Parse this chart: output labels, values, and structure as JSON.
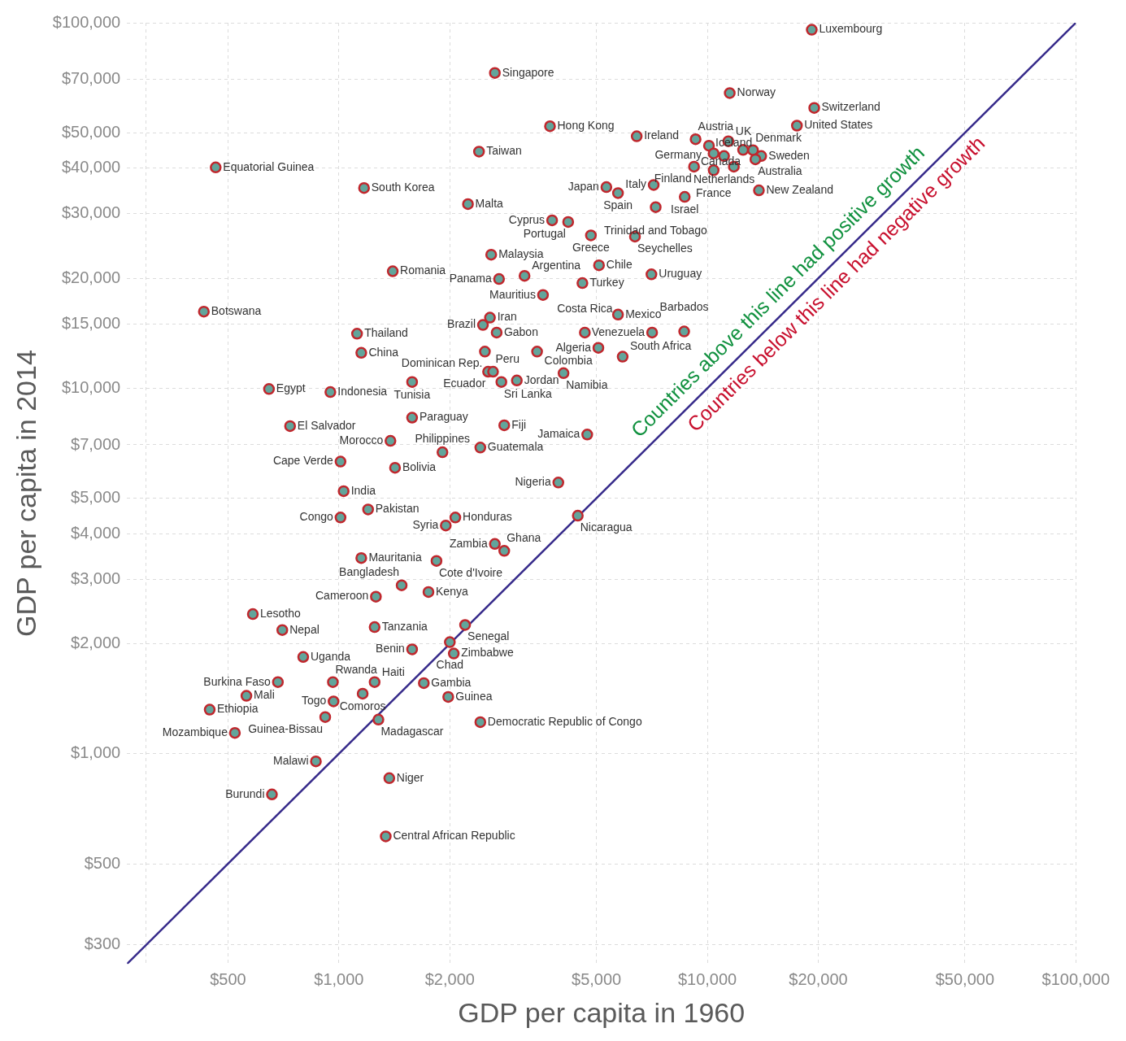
{
  "chart_data": {
    "type": "scatter",
    "xlabel": "GDP per capita in 1960",
    "ylabel": "GDP per capita in 2014",
    "log": "xy",
    "grid": true,
    "legend": false,
    "marker": "circle",
    "xlim": [
      266,
      100000
    ],
    "ylim": [
      266,
      100000
    ],
    "xticks": [
      {
        "value": 300,
        "label": null
      },
      {
        "value": 500,
        "label": "$500"
      },
      {
        "value": 1000,
        "label": "$1,000"
      },
      {
        "value": 2000,
        "label": "$2,000"
      },
      {
        "value": 5000,
        "label": "$5,000"
      },
      {
        "value": 10000,
        "label": "$10,000"
      },
      {
        "value": 20000,
        "label": "$20,000"
      },
      {
        "value": 50000,
        "label": "$50,000"
      },
      {
        "value": 100000,
        "label": "$100,000"
      }
    ],
    "yticks": [
      {
        "value": 300,
        "label": "$300"
      },
      {
        "value": 500,
        "label": "$500"
      },
      {
        "value": 1000,
        "label": "$1,000"
      },
      {
        "value": 2000,
        "label": "$2,000"
      },
      {
        "value": 3000,
        "label": "$3,000"
      },
      {
        "value": 4000,
        "label": "$4,000"
      },
      {
        "value": 5000,
        "label": "$5,000"
      },
      {
        "value": 7000,
        "label": "$7,000"
      },
      {
        "value": 10000,
        "label": "$10,000"
      },
      {
        "value": 15000,
        "label": "$15,000"
      },
      {
        "value": 20000,
        "label": "$20,000"
      },
      {
        "value": 30000,
        "label": "$30,000"
      },
      {
        "value": 40000,
        "label": "$40,000"
      },
      {
        "value": 50000,
        "label": "$50,000"
      },
      {
        "value": 70000,
        "label": "$70,000"
      },
      {
        "value": 100000,
        "label": "$100,000"
      }
    ],
    "series": [
      {
        "type": "scatter",
        "color": "#62a59b",
        "x": [
          19200,
          2650,
          11500,
          19500,
          17500,
          3740,
          6430,
          9290,
          11100,
          11400,
          10100,
          10400,
          13300,
          14000,
          13500,
          12500,
          9200,
          10400,
          11800,
          13800,
          5320,
          5720,
          7150,
          8680,
          7240,
          4190,
          4830,
          6360,
          463,
          1170,
          2400,
          2240,
          3790,
          2590,
          3190,
          5080,
          7050,
          1400,
          2720,
          4580,
          3580,
          430,
          1120,
          1150,
          2570,
          2460,
          2680,
          2490,
          3450,
          4650,
          5720,
          7080,
          5060,
          5890,
          8650,
          2540,
          2620,
          2760,
          3040,
          4070,
          646,
          948,
          1580,
          1580,
          2810,
          4720,
          737,
          1380,
          1010,
          1910,
          2420,
          1420,
          3940,
          1030,
          4450,
          1010,
          1200,
          2070,
          1950,
          2650,
          2810,
          1150,
          1840,
          1480,
          1750,
          1260,
          1250,
          2200,
          2000,
          1580,
          2050,
          584,
          702,
          800,
          683,
          963,
          1250,
          1700,
          561,
          446,
          967,
          1160,
          1980,
          918,
          1280,
          2420,
          522,
          866,
          1370,
          658,
          1340
        ],
        "values": [
          95700,
          72900,
          64200,
          58500,
          52300,
          52100,
          48900,
          48000,
          43200,
          47400,
          46100,
          43900,
          44800,
          43200,
          42300,
          44900,
          40400,
          39500,
          40400,
          34800,
          35500,
          34200,
          36000,
          33400,
          31300,
          28500,
          26200,
          26000,
          40200,
          35300,
          44400,
          31900,
          28800,
          23200,
          20300,
          21700,
          20500,
          20900,
          19900,
          19400,
          18000,
          16200,
          14100,
          12500,
          15600,
          14900,
          14200,
          12600,
          12600,
          14200,
          15900,
          14200,
          12900,
          12200,
          14300,
          11100,
          11100,
          10400,
          10500,
          11000,
          9950,
          9760,
          10400,
          8310,
          7920,
          7470,
          7880,
          7180,
          6300,
          6680,
          6880,
          6060,
          5520,
          5230,
          4480,
          4430,
          4660,
          4430,
          4210,
          3750,
          3590,
          3430,
          3370,
          2890,
          2770,
          2690,
          2220,
          2250,
          2020,
          1930,
          1880,
          2410,
          2180,
          1840,
          1570,
          1570,
          1570,
          1560,
          1440,
          1320,
          1390,
          1460,
          1430,
          1260,
          1240,
          1220,
          1140,
          953,
          857,
          774,
          594
        ]
      },
      {
        "type": "line",
        "color": "#362a8a",
        "marker": "none",
        "x": [
          266,
          100000
        ],
        "values": [
          266,
          100000
        ]
      }
    ],
    "annotations": [
      "Countries above this line had positive growth",
      "Countries below this line had negative growth",
      {
        "text": "Luxembourg",
        "x": 19200,
        "y": 95700
      },
      {
        "text": "Singapore",
        "x": 2650,
        "y": 72900
      },
      {
        "text": "Norway",
        "x": 11500,
        "y": 64200
      },
      {
        "text": "Switzerland",
        "x": 19500,
        "y": 58500
      },
      {
        "text": "United States",
        "x": 17500,
        "y": 52300
      },
      {
        "text": "Hong Kong",
        "x": 3740,
        "y": 52100
      },
      {
        "text": "Ireland",
        "x": 6430,
        "y": 48900
      },
      {
        "text": "Austria",
        "x": 9290,
        "y": 48000
      },
      {
        "text": "Netherlands",
        "x": 11100,
        "y": 43200
      },
      {
        "text": "UK",
        "x": 11400,
        "y": 47400
      },
      {
        "text": "Germany",
        "x": 10100,
        "y": 46100
      },
      {
        "text": "Denmark",
        "x": 13300,
        "y": 44800
      },
      {
        "text": "Sweden",
        "x": 14000,
        "y": 43200
      },
      {
        "text": "Australia",
        "x": 13500,
        "y": 42300
      },
      {
        "text": "Canada",
        "x": 12500,
        "y": 44900
      },
      {
        "text": "Finland",
        "x": 9200,
        "y": 40400
      },
      {
        "text": "France",
        "x": 10400,
        "y": 39500
      },
      {
        "text": "Iceland",
        "x": 11800,
        "y": 40400
      },
      {
        "text": "New Zealand",
        "x": 13800,
        "y": 34800
      },
      {
        "text": "Japan",
        "x": 5320,
        "y": 35500
      },
      {
        "text": "Spain",
        "x": 5720,
        "y": 34200
      },
      {
        "text": "Italy",
        "x": 7150,
        "y": 36000
      },
      {
        "text": "Israel",
        "x": 8680,
        "y": 33400
      },
      {
        "text": "Trinidad and Tobago",
        "x": 7240,
        "y": 31300
      },
      {
        "text": "Portugal",
        "x": 4190,
        "y": 28500
      },
      {
        "text": "Greece",
        "x": 4830,
        "y": 26200
      },
      {
        "text": "Seychelles",
        "x": 6360,
        "y": 26000
      },
      {
        "text": "Equatorial Guinea",
        "x": 463,
        "y": 40200
      },
      {
        "text": "South Korea",
        "x": 1170,
        "y": 35300
      },
      {
        "text": "Taiwan",
        "x": 2400,
        "y": 44400
      },
      {
        "text": "Malta",
        "x": 2240,
        "y": 31900
      },
      {
        "text": "Cyprus",
        "x": 3790,
        "y": 28800
      },
      {
        "text": "Malaysia",
        "x": 2590,
        "y": 23200
      },
      {
        "text": "Argentina",
        "x": 3190,
        "y": 20300
      },
      {
        "text": "Chile",
        "x": 5080,
        "y": 21700
      },
      {
        "text": "Uruguay",
        "x": 7050,
        "y": 20500
      },
      {
        "text": "Romania",
        "x": 1400,
        "y": 20900
      },
      {
        "text": "Panama",
        "x": 2720,
        "y": 19900
      },
      {
        "text": "Turkey",
        "x": 4580,
        "y": 19400
      },
      {
        "text": "Mauritius",
        "x": 3580,
        "y": 18000
      },
      {
        "text": "Botswana",
        "x": 430,
        "y": 16200
      },
      {
        "text": "Thailand",
        "x": 1120,
        "y": 14100
      },
      {
        "text": "China",
        "x": 1150,
        "y": 12500
      },
      {
        "text": "Iran",
        "x": 2570,
        "y": 15600
      },
      {
        "text": "Brazil",
        "x": 2460,
        "y": 14900
      },
      {
        "text": "Gabon",
        "x": 2680,
        "y": 14200
      },
      {
        "text": "Dominican Rep.",
        "x": 2490,
        "y": 12600
      },
      {
        "text": "Colombia",
        "x": 3450,
        "y": 12600
      },
      {
        "text": "Costa Rica",
        "x": 4650,
        "y": 14200
      },
      {
        "text": "Mexico",
        "x": 5720,
        "y": 15900
      },
      {
        "text": "Venezuela",
        "x": 7080,
        "y": 14200
      },
      {
        "text": "Algeria",
        "x": 5060,
        "y": 12900
      },
      {
        "text": "South Africa",
        "x": 5890,
        "y": 12200
      },
      {
        "text": "Barbados",
        "x": 8650,
        "y": 14300
      },
      {
        "text": "Ecuador",
        "x": 2540,
        "y": 11100
      },
      {
        "text": "Peru",
        "x": 2620,
        "y": 11100
      },
      {
        "text": "Sri Lanka",
        "x": 2760,
        "y": 10400
      },
      {
        "text": "Jordan",
        "x": 3040,
        "y": 10500
      },
      {
        "text": "Namibia",
        "x": 4070,
        "y": 11000
      },
      {
        "text": "Egypt",
        "x": 646,
        "y": 9950
      },
      {
        "text": "Indonesia",
        "x": 948,
        "y": 9760
      },
      {
        "text": "Tunisia",
        "x": 1580,
        "y": 10400
      },
      {
        "text": "Paraguay",
        "x": 1580,
        "y": 8310
      },
      {
        "text": "Fiji",
        "x": 2810,
        "y": 7920
      },
      {
        "text": "Jamaica",
        "x": 4720,
        "y": 7470
      },
      {
        "text": "El Salvador",
        "x": 737,
        "y": 7880
      },
      {
        "text": "Morocco",
        "x": 1380,
        "y": 7180
      },
      {
        "text": "Cape Verde",
        "x": 1010,
        "y": 6300
      },
      {
        "text": "Philippines",
        "x": 1910,
        "y": 6680
      },
      {
        "text": "Guatemala",
        "x": 2420,
        "y": 6880
      },
      {
        "text": "Bolivia",
        "x": 1420,
        "y": 6060
      },
      {
        "text": "Nigeria",
        "x": 3940,
        "y": 5520
      },
      {
        "text": "India",
        "x": 1030,
        "y": 5230
      },
      {
        "text": "Nicaragua",
        "x": 4450,
        "y": 4480
      },
      {
        "text": "Congo",
        "x": 1010,
        "y": 4430
      },
      {
        "text": "Pakistan",
        "x": 1200,
        "y": 4660
      },
      {
        "text": "Honduras",
        "x": 2070,
        "y": 4430
      },
      {
        "text": "Syria",
        "x": 1950,
        "y": 4210
      },
      {
        "text": "Zambia",
        "x": 2650,
        "y": 3750
      },
      {
        "text": "Ghana",
        "x": 2810,
        "y": 3590
      },
      {
        "text": "Mauritania",
        "x": 1150,
        "y": 3430
      },
      {
        "text": "Cote d'Ivoire",
        "x": 1840,
        "y": 3370
      },
      {
        "text": "Bangladesh",
        "x": 1480,
        "y": 2890
      },
      {
        "text": "Kenya",
        "x": 1750,
        "y": 2770
      },
      {
        "text": "Cameroon",
        "x": 1260,
        "y": 2690
      },
      {
        "text": "Tanzania",
        "x": 1250,
        "y": 2220
      },
      {
        "text": "Senegal",
        "x": 2200,
        "y": 2250
      },
      {
        "text": "Chad",
        "x": 2000,
        "y": 2020
      },
      {
        "text": "Benin",
        "x": 1580,
        "y": 1930
      },
      {
        "text": "Zimbabwe",
        "x": 2050,
        "y": 1880
      },
      {
        "text": "Lesotho",
        "x": 584,
        "y": 2410
      },
      {
        "text": "Nepal",
        "x": 702,
        "y": 2180
      },
      {
        "text": "Uganda",
        "x": 800,
        "y": 1840
      },
      {
        "text": "Burkina Faso",
        "x": 683,
        "y": 1570
      },
      {
        "text": "Rwanda",
        "x": 963,
        "y": 1570
      },
      {
        "text": "Haiti",
        "x": 1250,
        "y": 1570
      },
      {
        "text": "Gambia",
        "x": 1700,
        "y": 1560
      },
      {
        "text": "Mali",
        "x": 561,
        "y": 1440
      },
      {
        "text": "Ethiopia",
        "x": 446,
        "y": 1320
      },
      {
        "text": "Togo",
        "x": 967,
        "y": 1390
      },
      {
        "text": "Comoros",
        "x": 1160,
        "y": 1460
      },
      {
        "text": "Guinea",
        "x": 1980,
        "y": 1430
      },
      {
        "text": "Guinea-Bissau",
        "x": 918,
        "y": 1260
      },
      {
        "text": "Madagascar",
        "x": 1280,
        "y": 1240
      },
      {
        "text": "Democratic Republic of Congo",
        "x": 2420,
        "y": 1220
      },
      {
        "text": "Mozambique",
        "x": 522,
        "y": 1140
      },
      {
        "text": "Malawi",
        "x": 866,
        "y": 953
      },
      {
        "text": "Niger",
        "x": 1370,
        "y": 857
      },
      {
        "text": "Burundi",
        "x": 658,
        "y": 774
      },
      {
        "text": "Central African Republic",
        "x": 1340,
        "y": 594
      }
    ]
  }
}
